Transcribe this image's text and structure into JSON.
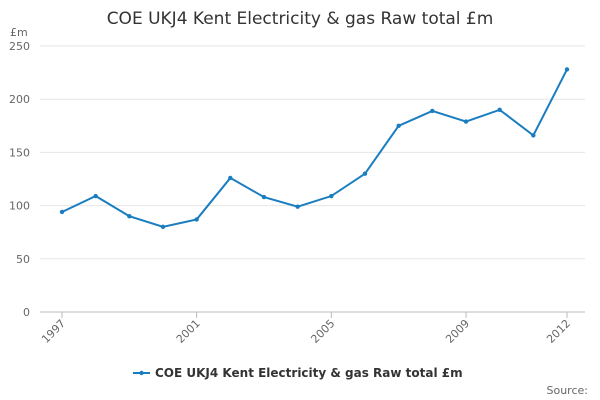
{
  "chart_data": {
    "type": "line",
    "title": "COE UKJ4 Kent Electricity & gas Raw total £m",
    "y_label": "£m",
    "source": "Source:",
    "x": [
      1997,
      1998,
      1999,
      2000,
      2001,
      2002,
      2003,
      2004,
      2005,
      2006,
      2007,
      2008,
      2009,
      2010,
      2011,
      2012
    ],
    "series": [
      {
        "name": "COE UKJ4 Kent Electricity & gas Raw total £m",
        "color": "#1a7dc0",
        "values": [
          94,
          109,
          90,
          80,
          87,
          126,
          108,
          99,
          109,
          130,
          175,
          189,
          179,
          190,
          166,
          228
        ]
      }
    ],
    "xlim": [
      1997,
      2012
    ],
    "xticks": [
      1997,
      2001,
      2005,
      2009,
      2012
    ],
    "ylim": [
      0,
      250
    ],
    "yticks": [
      0,
      50,
      100,
      150,
      200,
      250
    ],
    "grid": true
  }
}
